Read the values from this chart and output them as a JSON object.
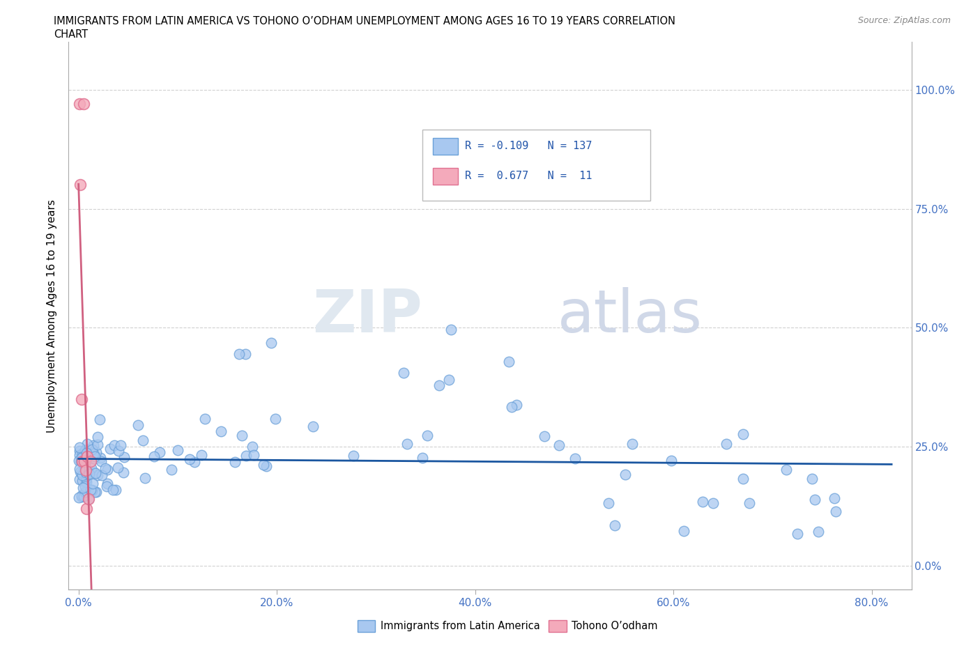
{
  "title_line1": "IMMIGRANTS FROM LATIN AMERICA VS TOHONO O’ODHAM UNEMPLOYMENT AMONG AGES 16 TO 19 YEARS CORRELATION",
  "title_line2": "CHART",
  "source": "Source: ZipAtlas.com",
  "ylabel": "Unemployment Among Ages 16 to 19 years",
  "xlim": [
    -0.01,
    0.84
  ],
  "ylim": [
    -0.05,
    1.1
  ],
  "xticks": [
    0.0,
    0.2,
    0.4,
    0.6,
    0.8
  ],
  "xticklabels": [
    "0.0%",
    "20.0%",
    "40.0%",
    "60.0%",
    "80.0%"
  ],
  "yticks": [
    0.0,
    0.25,
    0.5,
    0.75,
    1.0
  ],
  "right_yticklabels": [
    "0.0%",
    "25.0%",
    "50.0%",
    "75.0%",
    "100.0%"
  ],
  "blue_color": "#A8C8F0",
  "blue_edge": "#6AA0D8",
  "pink_color": "#F4AABB",
  "pink_edge": "#E07090",
  "trend_blue": "#1A56A0",
  "trend_pink": "#D06080",
  "R_blue": -0.109,
  "N_blue": 137,
  "R_pink": 0.677,
  "N_pink": 11,
  "legend_label_blue": "Immigrants from Latin America",
  "legend_label_pink": "Tohono O’odham",
  "watermark_zip": "ZIP",
  "watermark_atlas": "atlas"
}
